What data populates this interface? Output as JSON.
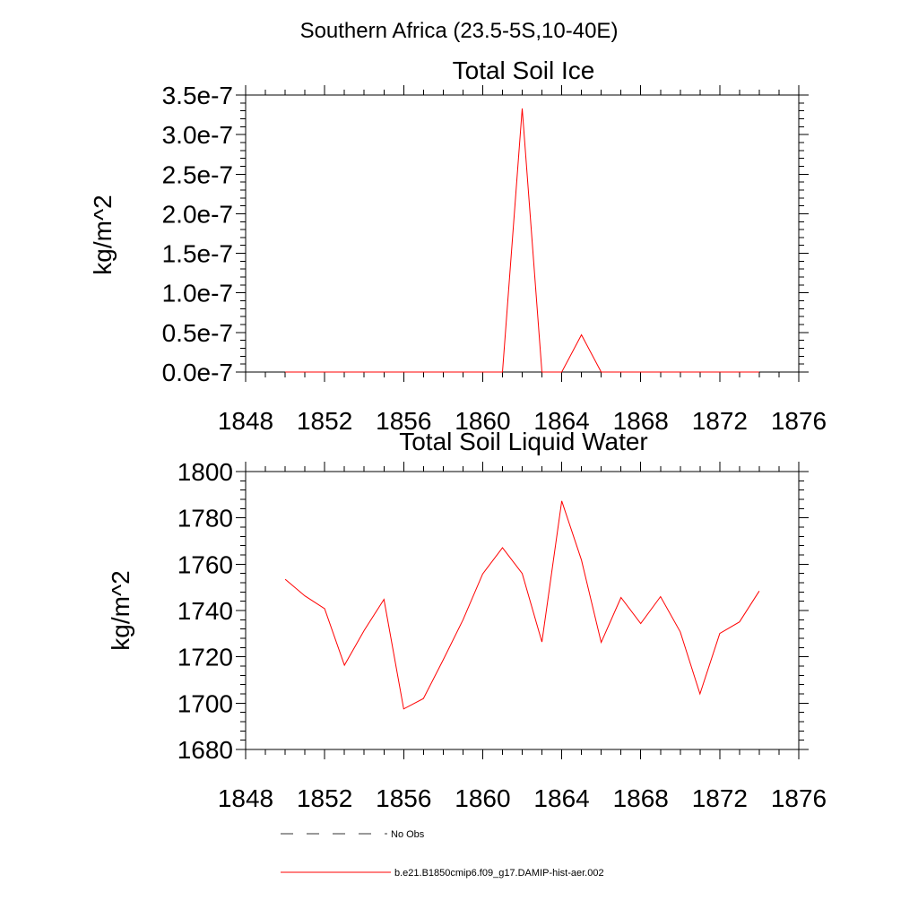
{
  "figure": {
    "suptitle": "Southern Africa (23.5-5S,10-40E)"
  },
  "chart_data": [
    {
      "type": "line",
      "title": "Total Soil Ice",
      "xlabel": "",
      "ylabel": "kg/m^2",
      "xlim": [
        1848,
        1876
      ],
      "ylim": [
        0,
        3.5e-07
      ],
      "x_ticks": [
        1848,
        1852,
        1856,
        1860,
        1864,
        1868,
        1872,
        1876
      ],
      "y_ticks": [
        0,
        5e-08,
        1e-07,
        1.5e-07,
        2e-07,
        2.5e-07,
        3e-07,
        3.5e-07
      ],
      "y_tick_labels": [
        "0.0e-7",
        "0.5e-7",
        "1.0e-7",
        "1.5e-7",
        "2.0e-7",
        "2.5e-7",
        "3.0e-7",
        "3.5e-7"
      ],
      "grid": false,
      "series": [
        {
          "name": "b.e21.B1850cmip6.f09_g17.DAMIP-hist-aer.002",
          "color": "#ff0000",
          "x": [
            1850,
            1851,
            1852,
            1853,
            1854,
            1855,
            1856,
            1857,
            1858,
            1859,
            1860,
            1861,
            1862,
            1863,
            1864,
            1865,
            1866,
            1867,
            1868,
            1869,
            1870,
            1871,
            1872,
            1873,
            1874
          ],
          "y": [
            0,
            0,
            0,
            0,
            0,
            0,
            0,
            0,
            0,
            0,
            0,
            0,
            3.33e-07,
            0,
            0,
            4.7e-08,
            0,
            0,
            0,
            0,
            0,
            0,
            0,
            0,
            0
          ]
        }
      ]
    },
    {
      "type": "line",
      "title": "Total Soil Liquid Water",
      "xlabel": "",
      "ylabel": "kg/m^2",
      "xlim": [
        1848,
        1876
      ],
      "ylim": [
        1680,
        1800
      ],
      "x_ticks": [
        1848,
        1852,
        1856,
        1860,
        1864,
        1868,
        1872,
        1876
      ],
      "y_ticks": [
        1680,
        1700,
        1720,
        1740,
        1760,
        1780,
        1800
      ],
      "y_tick_labels": [
        "1680",
        "1700",
        "1720",
        "1740",
        "1760",
        "1780",
        "1800"
      ],
      "grid": false,
      "series": [
        {
          "name": "b.e21.B1850cmip6.f09_g17.DAMIP-hist-aer.002",
          "color": "#ff0000",
          "x": [
            1850,
            1851,
            1852,
            1853,
            1854,
            1855,
            1856,
            1857,
            1858,
            1859,
            1860,
            1861,
            1862,
            1863,
            1864,
            1865,
            1866,
            1867,
            1868,
            1869,
            1870,
            1871,
            1872,
            1873,
            1874
          ],
          "y": [
            1753.5,
            1746.3,
            1740.8,
            1716.4,
            1731.4,
            1744.8,
            1697.5,
            1702.0,
            1718.7,
            1735.9,
            1755.8,
            1767.1,
            1756.0,
            1726.4,
            1787.3,
            1761.8,
            1726.2,
            1745.6,
            1734.4,
            1746.0,
            1730.8,
            1704.0,
            1730.1,
            1735.1,
            1748.4
          ]
        }
      ]
    }
  ],
  "legend": {
    "placement": "bottom",
    "items": [
      {
        "label": "No Obs",
        "color": "#333333",
        "style": "dashed"
      },
      {
        "label": "b.e21.B1850cmip6.f09_g17.DAMIP-hist-aer.002",
        "color": "#ff0000",
        "style": "solid"
      }
    ]
  }
}
